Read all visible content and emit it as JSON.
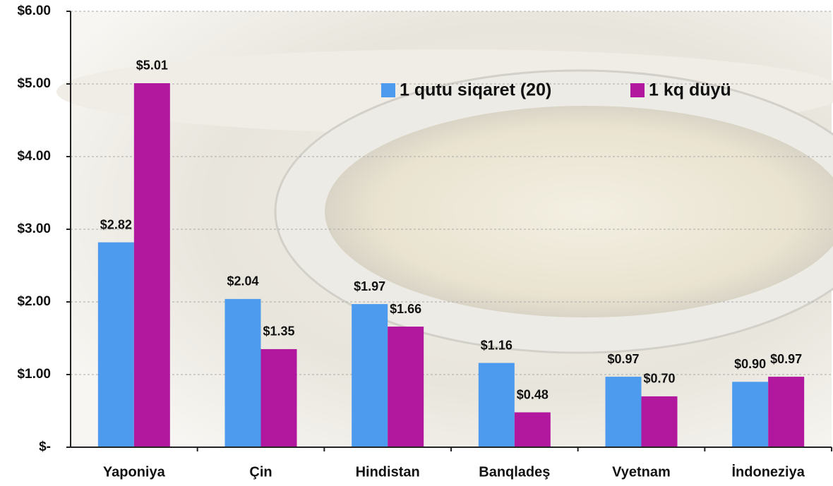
{
  "chart_data": {
    "type": "bar",
    "categories": [
      "Yaponiya",
      "Çin",
      "Hindistan",
      "Banqladeş",
      "Vyetnam",
      "İndoneziya"
    ],
    "series": [
      {
        "name": "1 qutu siqaret (20)",
        "color": "#4d9bef",
        "values": [
          2.82,
          2.04,
          1.97,
          1.16,
          0.97,
          0.9
        ],
        "value_labels": [
          "$2.82",
          "$2.04",
          "$1.97",
          "$1.16",
          "$0.97",
          "$0.90"
        ]
      },
      {
        "name": "1 kq düyü",
        "color": "#b1189e",
        "values": [
          5.01,
          1.35,
          1.66,
          0.48,
          0.7,
          0.97
        ],
        "value_labels": [
          "$5.01",
          "$1.35",
          "$1.66",
          "$0.48",
          "$0.70",
          "$0.97"
        ]
      }
    ],
    "ylim": [
      0,
      6
    ],
    "yticks": [
      {
        "value": 0,
        "label": "$-"
      },
      {
        "value": 1,
        "label": "$1.00"
      },
      {
        "value": 2,
        "label": "$2.00"
      },
      {
        "value": 3,
        "label": "$3.00"
      },
      {
        "value": 4,
        "label": "$4.00"
      },
      {
        "value": 5,
        "label": "$5.00"
      },
      {
        "value": 6,
        "label": "$6.00"
      }
    ],
    "grid": true
  }
}
